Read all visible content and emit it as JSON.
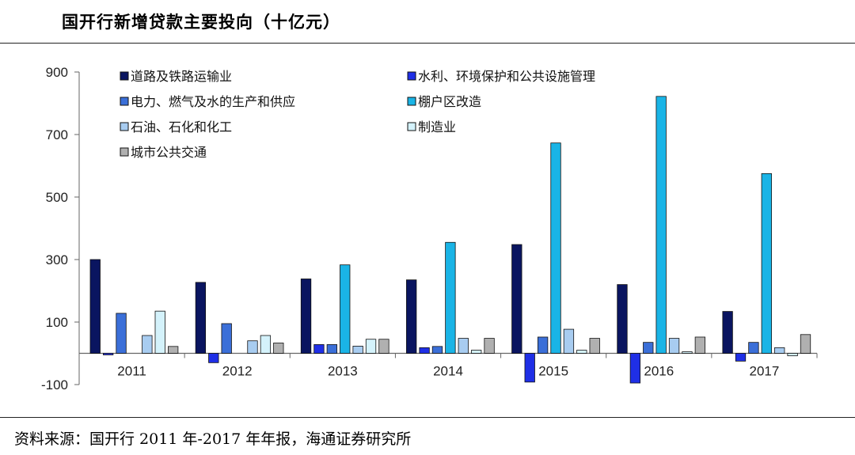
{
  "title": "国开行新增贷款主要投向（十亿元）",
  "source": "资料来源：国开行 2011 年-2017 年年报，海通证券研究所",
  "chart_data": {
    "type": "bar",
    "title": "国开行新增贷款主要投向（十亿元）",
    "categories": [
      "2011",
      "2012",
      "2013",
      "2014",
      "2015",
      "2016",
      "2017"
    ],
    "ylim": [
      -100,
      900
    ],
    "yticks": [
      -100,
      100,
      300,
      500,
      700,
      900
    ],
    "grid": false,
    "legend_position": "top",
    "series": [
      {
        "name": "道路及铁路运输业",
        "color": "#0a1560",
        "values": [
          300,
          227,
          238,
          235,
          348,
          220,
          134
        ]
      },
      {
        "name": "水利、环境保护和公共设施管理",
        "color": "#1f2fe6",
        "values": [
          -5,
          -30,
          28,
          18,
          -92,
          -95,
          -25
        ]
      },
      {
        "name": "电力、燃气及水的生产和供应",
        "color": "#3b6fd8",
        "values": [
          128,
          95,
          28,
          22,
          52,
          35,
          35
        ]
      },
      {
        "name": "棚户区改造",
        "color": "#1ab4e6",
        "values": [
          0,
          0,
          283,
          355,
          673,
          822,
          575
        ]
      },
      {
        "name": "石油、石化和化工",
        "color": "#a8ccf0",
        "values": [
          57,
          40,
          23,
          48,
          77,
          48,
          18
        ]
      },
      {
        "name": "制造业",
        "color": "#d4f2fb",
        "values": [
          135,
          57,
          45,
          10,
          10,
          5,
          -8
        ]
      },
      {
        "name": "城市公共交通",
        "color": "#b0b0b0",
        "values": [
          22,
          33,
          45,
          48,
          48,
          52,
          60
        ]
      }
    ]
  }
}
